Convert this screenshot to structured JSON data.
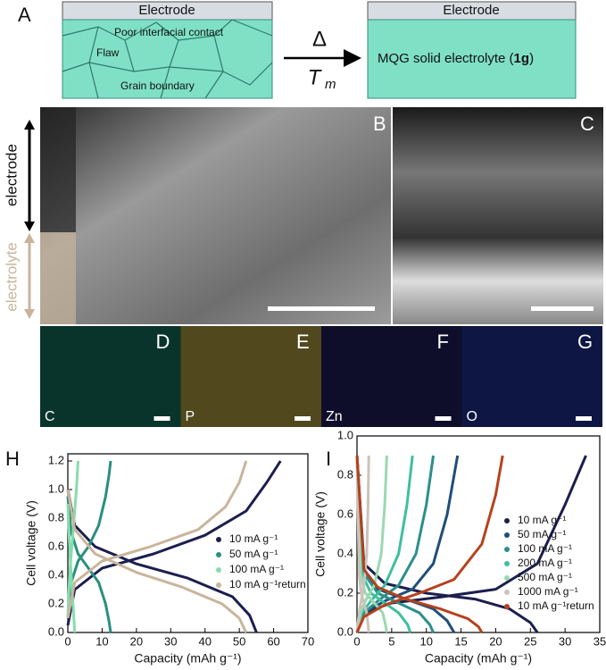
{
  "figure": {
    "panel_a": "A",
    "electrode_left": "Electrode",
    "poor_contact": "Poor interfacial contact",
    "flaw": "Flaw",
    "grain_boundary": "Grain boundary",
    "delta": "Δ",
    "t": "T",
    "t_sub": "m",
    "electrode_right": "Electrode",
    "electrolyte_pre": "MQG solid electrolyte (",
    "electrolyte_bold": "1g",
    "electrolyte_post": ")",
    "panel_b": "B",
    "panel_c": "C",
    "side_electrode": "electrode",
    "side_electrolyte": "electrolyte",
    "eds": [
      {
        "panel": "D",
        "element": "C"
      },
      {
        "panel": "E",
        "element": "P"
      },
      {
        "panel": "F",
        "element": "Zn"
      },
      {
        "panel": "G",
        "element": "O"
      }
    ],
    "panel_h": "H",
    "panel_i": "I"
  },
  "chart_data": [
    {
      "type": "line",
      "xlabel": "Capacity (mAh g⁻¹)",
      "ylabel": "Cell voltage (V)",
      "legend": "right",
      "xlim": [
        0,
        70
      ],
      "xticks": [
        0,
        10,
        20,
        30,
        40,
        50,
        60,
        70
      ],
      "ylim": [
        0,
        1.25
      ],
      "yticks": [
        {
          "value": 0,
          "label": "0.0"
        },
        {
          "value": 0.2,
          "label": "0.2"
        },
        {
          "value": 0.4,
          "label": "0.4"
        },
        {
          "value": 0.6,
          "label": "0.6"
        },
        {
          "value": 0.8,
          "label": "0.8"
        },
        {
          "value": 1.0,
          "label": "1.0"
        },
        {
          "value": 1.2,
          "label": "1.2"
        }
      ],
      "series": [
        {
          "name": "10 mA g⁻¹",
          "color": "#1c1e4e",
          "x": [
            0,
            2,
            8,
            20,
            35,
            48,
            53,
            55,
            null,
            0,
            2,
            10,
            25,
            40,
            52,
            58,
            62
          ],
          "values": [
            1.0,
            0.75,
            0.6,
            0.48,
            0.38,
            0.25,
            0.12,
            0,
            null,
            0.05,
            0.3,
            0.45,
            0.55,
            0.68,
            0.85,
            1.05,
            1.2
          ]
        },
        {
          "name": "50 mA g⁻¹",
          "color": "#2a8f7e",
          "x": [
            0,
            1,
            3,
            6,
            9,
            11,
            12,
            12.5,
            null,
            0,
            1,
            3,
            6,
            9,
            11,
            12,
            12.5
          ],
          "values": [
            0.95,
            0.7,
            0.55,
            0.45,
            0.35,
            0.2,
            0.08,
            0,
            null,
            0.1,
            0.35,
            0.5,
            0.6,
            0.75,
            0.95,
            1.1,
            1.2
          ]
        },
        {
          "name": "100 mA g⁻¹",
          "color": "#86dcae",
          "x": [
            0,
            0.5,
            1,
            1.5,
            2,
            null,
            0,
            0.5,
            1.5,
            2.5,
            3
          ],
          "values": [
            0.9,
            0.6,
            0.4,
            0.2,
            0,
            null,
            0.1,
            0.4,
            0.7,
            1.0,
            1.2
          ]
        },
        {
          "name": "10 mA g⁻¹return",
          "color": "#c9b59c",
          "x": [
            0,
            2,
            8,
            20,
            33,
            45,
            50,
            52,
            null,
            0,
            2,
            10,
            24,
            38,
            46,
            50,
            52
          ],
          "values": [
            1.0,
            0.72,
            0.55,
            0.42,
            0.32,
            0.2,
            0.1,
            0,
            null,
            0.1,
            0.35,
            0.5,
            0.6,
            0.72,
            0.88,
            1.05,
            1.2
          ]
        }
      ]
    },
    {
      "type": "line",
      "xlabel": "Capacity (mAh g⁻¹)",
      "ylabel": "Cell voltage (V)",
      "legend": "right",
      "xlim": [
        0,
        35
      ],
      "xticks": [
        0,
        5,
        10,
        15,
        20,
        25,
        30,
        35
      ],
      "ylim": [
        0,
        1.0
      ],
      "yticks": [
        {
          "value": 0,
          "label": "0.0"
        },
        {
          "value": 0.2,
          "label": "0.2"
        },
        {
          "value": 0.4,
          "label": "0.4"
        },
        {
          "value": 0.6,
          "label": "0.6"
        },
        {
          "value": 0.8,
          "label": "0.8"
        },
        {
          "value": 1.0,
          "label": "1.0"
        }
      ],
      "series": [
        {
          "name": "10 mA g⁻¹",
          "color": "#1c1e4e",
          "x": [
            0,
            1,
            4,
            10,
            17,
            22,
            25,
            26,
            null,
            0,
            1,
            5,
            12,
            20,
            26,
            30,
            33
          ],
          "values": [
            0.9,
            0.35,
            0.25,
            0.2,
            0.17,
            0.12,
            0.05,
            0,
            null,
            0,
            0.1,
            0.15,
            0.18,
            0.22,
            0.35,
            0.65,
            0.9
          ]
        },
        {
          "name": "50 mA g⁻¹",
          "color": "#1f4e79",
          "x": [
            0,
            1,
            3,
            7,
            11,
            13,
            14,
            null,
            0,
            1,
            4,
            8,
            11,
            13,
            14.5
          ],
          "values": [
            0.9,
            0.3,
            0.22,
            0.17,
            0.12,
            0.06,
            0,
            null,
            0,
            0.1,
            0.16,
            0.22,
            0.35,
            0.6,
            0.9
          ]
        },
        {
          "name": "100 mA g⁻¹",
          "color": "#2a8f8a",
          "x": [
            0,
            1,
            3,
            6,
            9,
            10.5,
            11,
            null,
            0,
            1,
            3,
            6,
            8.5,
            10,
            11
          ],
          "values": [
            0.9,
            0.3,
            0.2,
            0.15,
            0.1,
            0.04,
            0,
            null,
            0,
            0.1,
            0.16,
            0.24,
            0.4,
            0.65,
            0.9
          ]
        },
        {
          "name": "200 mA g⁻¹",
          "color": "#3fbf9f",
          "x": [
            0,
            0.7,
            2,
            4,
            6,
            7.3,
            7.7,
            null,
            0,
            0.7,
            2,
            4,
            6,
            7.2,
            8
          ],
          "values": [
            0.9,
            0.3,
            0.2,
            0.15,
            0.1,
            0.04,
            0,
            null,
            0,
            0.1,
            0.16,
            0.24,
            0.4,
            0.65,
            0.9
          ]
        },
        {
          "name": "500 mA g⁻¹",
          "color": "#9ad9b0",
          "x": [
            0,
            0.5,
            1.2,
            2.5,
            3.7,
            4.1,
            4.3,
            null,
            0,
            0.5,
            1.2,
            2.5,
            3.5,
            4,
            4.3
          ],
          "values": [
            0.9,
            0.3,
            0.2,
            0.15,
            0.1,
            0.04,
            0,
            null,
            0,
            0.1,
            0.16,
            0.24,
            0.4,
            0.65,
            0.9
          ]
        },
        {
          "name": "1000 mA g⁻¹",
          "color": "#cbc3bb",
          "x": [
            0,
            0.3,
            0.6,
            1,
            1.4,
            1.6,
            1.7,
            null,
            0,
            0.3,
            0.6,
            1,
            1.4,
            1.6,
            1.7
          ],
          "values": [
            0.9,
            0.3,
            0.2,
            0.15,
            0.1,
            0.04,
            0,
            null,
            0,
            0.1,
            0.16,
            0.24,
            0.4,
            0.65,
            0.9
          ]
        },
        {
          "name": "10 mA g⁻¹return",
          "color": "#b5421d",
          "x": [
            0,
            1,
            3,
            7,
            12,
            16,
            17.5,
            18,
            null,
            0,
            1,
            4,
            9,
            14,
            18,
            20,
            21
          ],
          "values": [
            0.9,
            0.32,
            0.23,
            0.17,
            0.12,
            0.07,
            0.03,
            0,
            null,
            0,
            0.08,
            0.14,
            0.2,
            0.27,
            0.45,
            0.7,
            0.9
          ]
        }
      ]
    }
  ]
}
